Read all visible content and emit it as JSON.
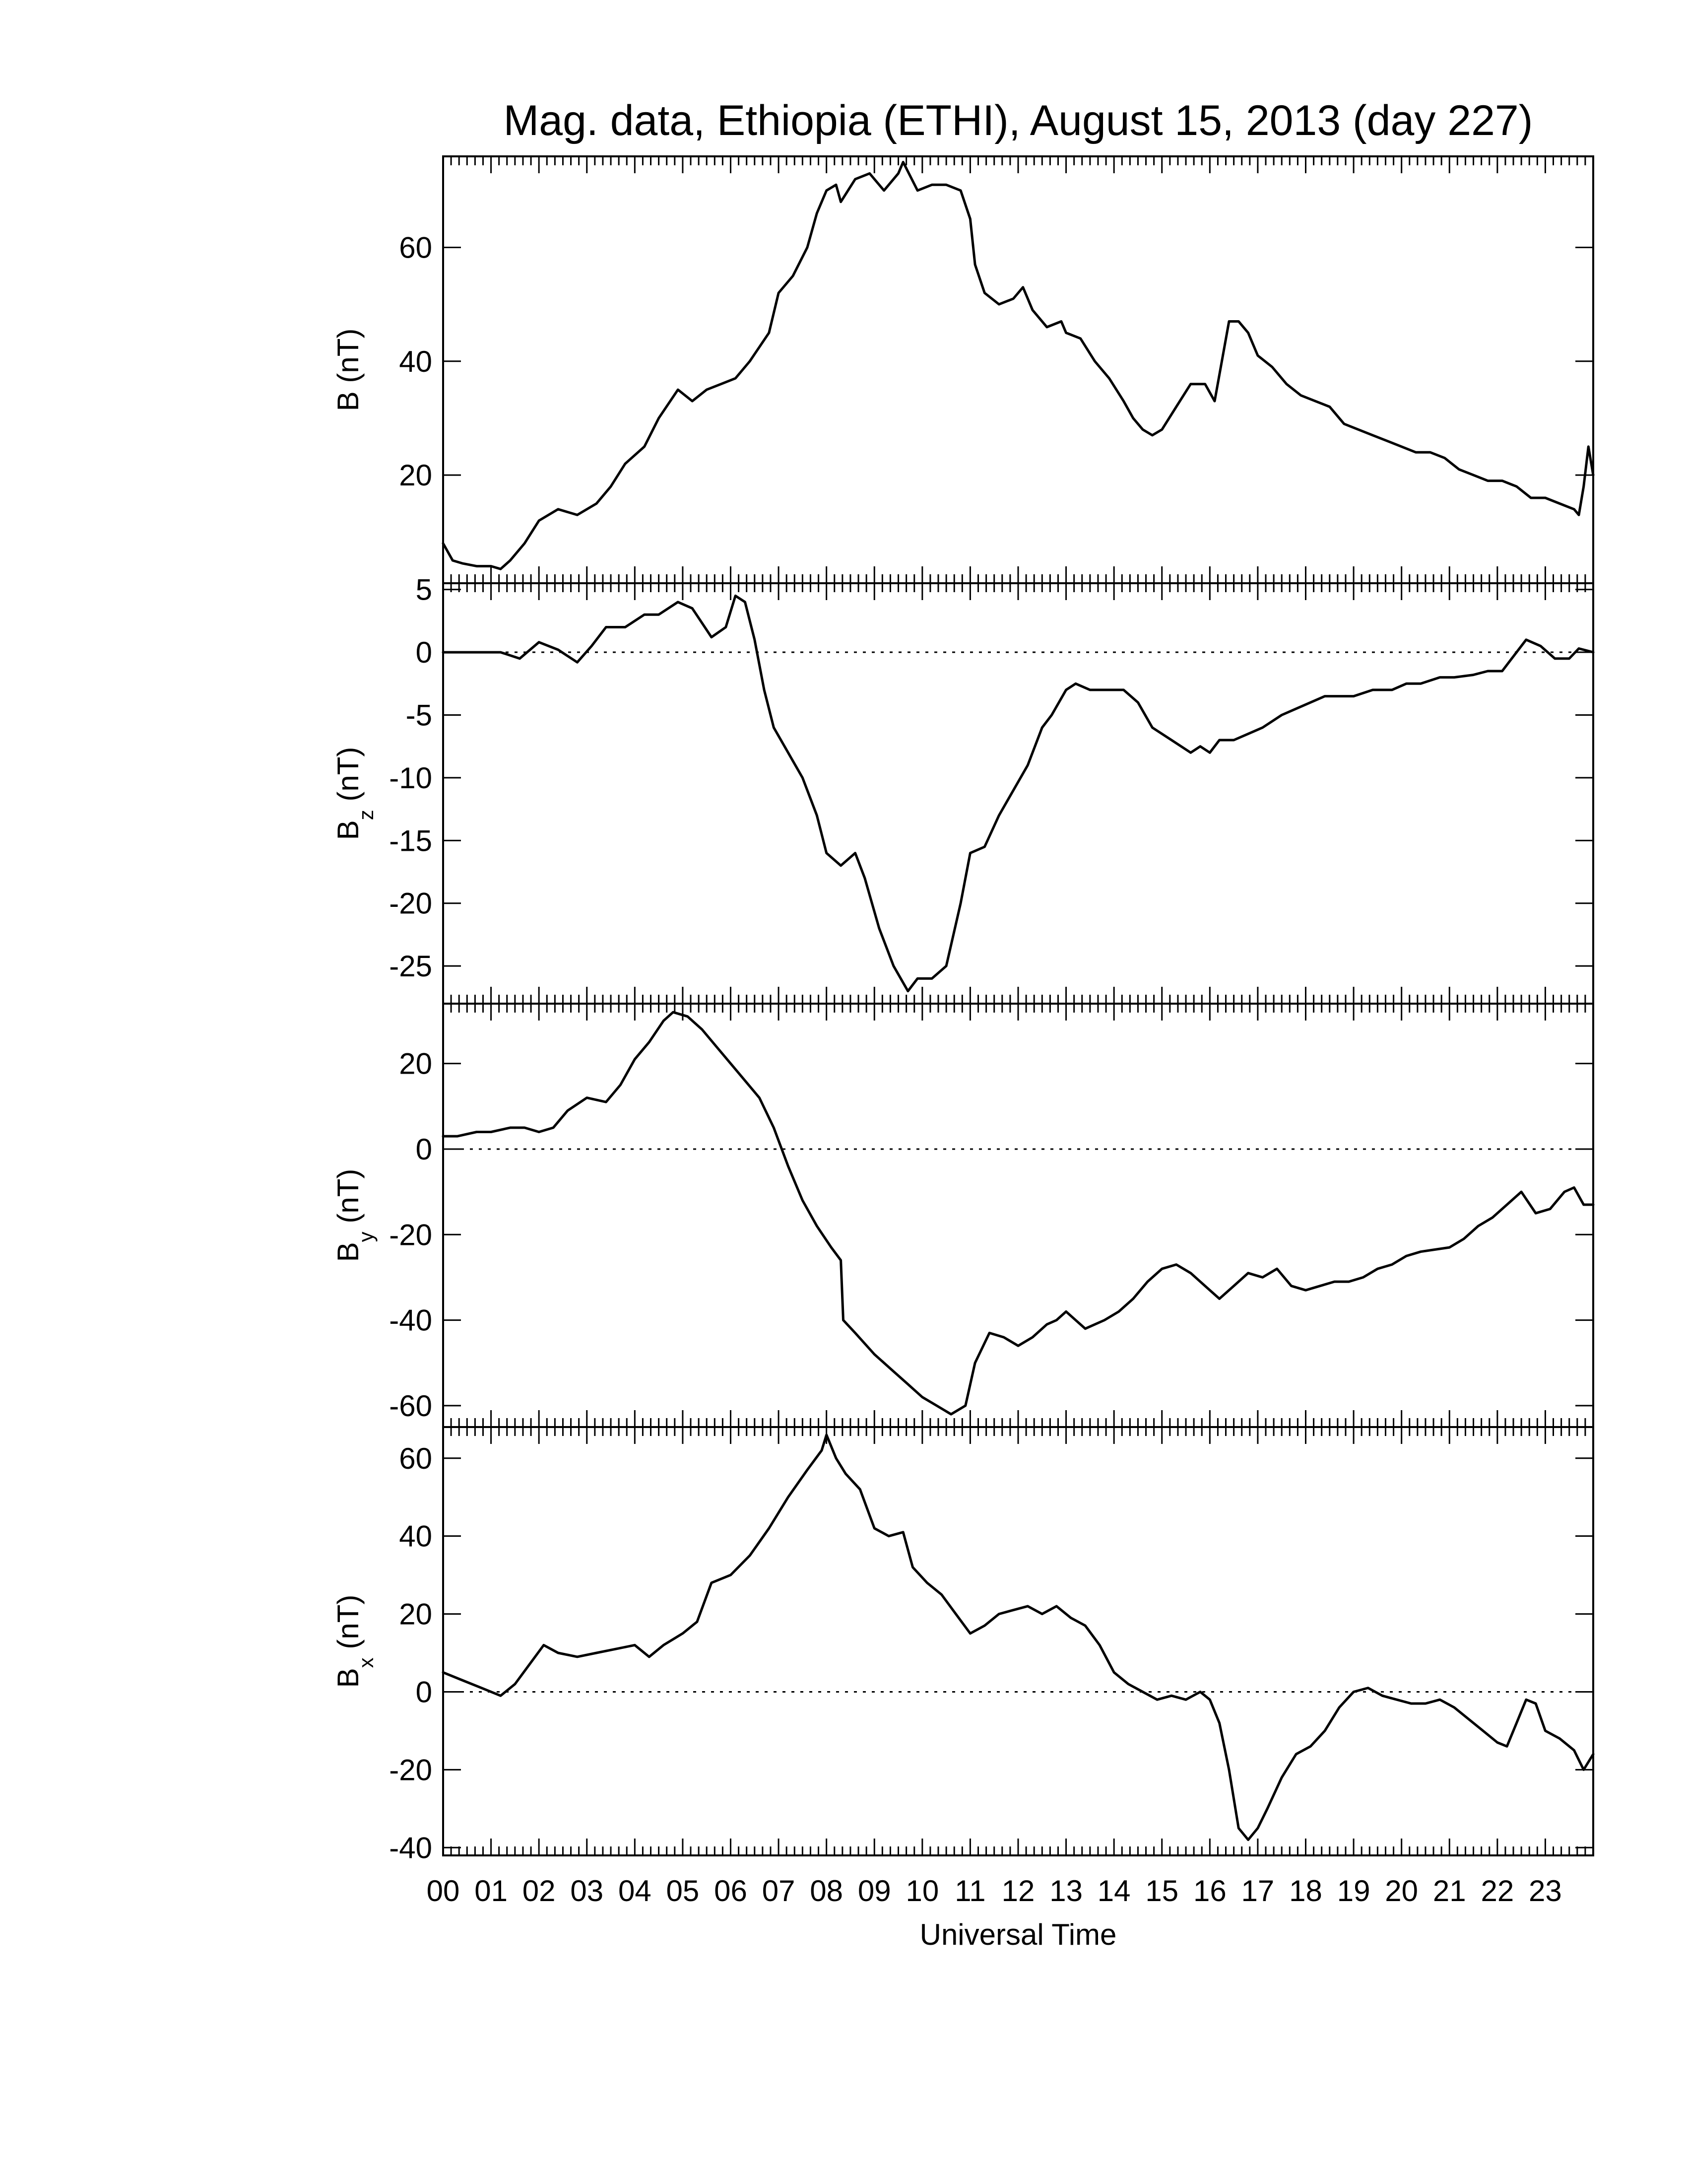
{
  "chart_data": {
    "title": "Mag. data, Ethiopia (ETHI), August 15, 2013 (day 227)",
    "xlabel": "Universal Time",
    "x_tick_labels": [
      "00",
      "01",
      "02",
      "03",
      "04",
      "05",
      "06",
      "07",
      "08",
      "09",
      "10",
      "11",
      "12",
      "13",
      "14",
      "15",
      "16",
      "17",
      "18",
      "19",
      "20",
      "21",
      "22",
      "23"
    ],
    "xlim": [
      0,
      24
    ],
    "panels": [
      {
        "type": "line",
        "ylabel": "B (nT)",
        "ylabel_main": "B",
        "ylabel_sub": "",
        "ylabel_unit": " (nT)",
        "ylim": [
          1,
          76
        ],
        "yticks": [
          20,
          40,
          60
        ],
        "ytick_labels": [
          "20",
          "40",
          "60"
        ],
        "zero_line": false,
        "x": [
          0,
          0.2,
          0.4,
          0.7,
          1.0,
          1.2,
          1.4,
          1.7,
          2.0,
          2.4,
          2.8,
          3.2,
          3.5,
          3.8,
          4.2,
          4.5,
          4.9,
          5.2,
          5.5,
          5.8,
          6.1,
          6.4,
          6.8,
          7.0,
          7.3,
          7.6,
          7.8,
          8.0,
          8.2,
          8.3,
          8.6,
          8.9,
          9.2,
          9.5,
          9.6,
          9.9,
          10.2,
          10.5,
          10.8,
          11.0,
          11.1,
          11.3,
          11.6,
          11.9,
          12.1,
          12.3,
          12.6,
          12.9,
          13.0,
          13.3,
          13.6,
          13.9,
          14.2,
          14.4,
          14.6,
          14.8,
          15.0,
          15.3,
          15.6,
          15.9,
          16.1,
          16.4,
          16.6,
          16.8,
          17.0,
          17.3,
          17.6,
          17.9,
          18.2,
          18.5,
          18.8,
          19.1,
          19.4,
          19.7,
          20.0,
          20.3,
          20.6,
          20.9,
          21.2,
          21.5,
          21.8,
          22.1,
          22.4,
          22.7,
          23.0,
          23.3,
          23.6,
          23.7,
          23.8,
          23.9,
          24.0
        ],
        "y": [
          8,
          5,
          4.5,
          4,
          4,
          3.5,
          5,
          8,
          12,
          14,
          13,
          15,
          18,
          22,
          25,
          30,
          35,
          33,
          35,
          36,
          37,
          40,
          45,
          52,
          55,
          60,
          66,
          70,
          71,
          68,
          72,
          73,
          70,
          73,
          75,
          70,
          71,
          71,
          70,
          65,
          57,
          52,
          50,
          51,
          53,
          49,
          46,
          47,
          45,
          44,
          40,
          37,
          33,
          30,
          28,
          27,
          28,
          32,
          36,
          36,
          33,
          47,
          47,
          45,
          41,
          39,
          36,
          34,
          33,
          32,
          29,
          28,
          27,
          26,
          25,
          24,
          24,
          23,
          21,
          20,
          19,
          19,
          18,
          16,
          16,
          15,
          14,
          13,
          18,
          25,
          20
        ]
      },
      {
        "type": "line",
        "ylabel": "Bz (nT)",
        "ylabel_main": "B",
        "ylabel_sub": "z",
        "ylabel_unit": " (nT)",
        "ylim": [
          -28,
          5.5
        ],
        "yticks": [
          -25,
          -20,
          -15,
          -10,
          -5,
          0,
          5
        ],
        "ytick_labels": [
          "-25",
          "-20",
          "-15",
          "-10",
          "-5",
          "0",
          "5"
        ],
        "zero_line": true,
        "x": [
          0,
          0.4,
          0.8,
          1.2,
          1.6,
          2.0,
          2.4,
          2.8,
          3.1,
          3.4,
          3.8,
          4.2,
          4.5,
          4.9,
          5.2,
          5.6,
          5.9,
          6.1,
          6.3,
          6.5,
          6.7,
          6.9,
          7.2,
          7.5,
          7.8,
          8.0,
          8.3,
          8.6,
          8.8,
          9.1,
          9.4,
          9.7,
          9.9,
          10.2,
          10.5,
          10.8,
          11.0,
          11.3,
          11.6,
          11.9,
          12.2,
          12.5,
          12.7,
          13.0,
          13.2,
          13.5,
          13.9,
          14.2,
          14.5,
          14.8,
          15.2,
          15.6,
          15.8,
          16.0,
          16.2,
          16.5,
          16.8,
          17.1,
          17.5,
          17.8,
          18.1,
          18.4,
          18.7,
          19.0,
          19.4,
          19.8,
          20.1,
          20.4,
          20.8,
          21.1,
          21.5,
          21.8,
          22.1,
          22.3,
          22.6,
          22.9,
          23.2,
          23.5,
          23.7,
          24.0
        ],
        "y": [
          0,
          0,
          0,
          0,
          -0.5,
          0.8,
          0.2,
          -0.8,
          0.5,
          2,
          2,
          3,
          3,
          4,
          3.5,
          1.2,
          2,
          4.5,
          4,
          1,
          -3,
          -6,
          -8,
          -10,
          -13,
          -16,
          -17,
          -16,
          -18,
          -22,
          -25,
          -27,
          -26,
          -26,
          -25,
          -20,
          -16,
          -15.5,
          -13,
          -11,
          -9,
          -6,
          -5,
          -3,
          -2.5,
          -3,
          -3,
          -3,
          -4,
          -6,
          -7,
          -8,
          -7.5,
          -8,
          -7,
          -7,
          -6.5,
          -6,
          -5,
          -4.5,
          -4,
          -3.5,
          -3.5,
          -3.5,
          -3,
          -3,
          -2.5,
          -2.5,
          -2,
          -2,
          -1.8,
          -1.5,
          -1.5,
          -0.5,
          1,
          0.5,
          -0.5,
          -0.5,
          0.3,
          0
        ]
      },
      {
        "type": "line",
        "ylabel": "By (nT)",
        "ylabel_main": "B",
        "ylabel_sub": "y",
        "ylabel_unit": " (nT)",
        "ylim": [
          -65,
          34
        ],
        "yticks": [
          -60,
          -40,
          -20,
          0,
          20
        ],
        "ytick_labels": [
          "-60",
          "-40",
          "-20",
          "0",
          "20"
        ],
        "zero_line": true,
        "x": [
          0,
          0.3,
          0.7,
          1.0,
          1.4,
          1.7,
          2.0,
          2.3,
          2.6,
          3.0,
          3.4,
          3.7,
          4.0,
          4.3,
          4.6,
          4.8,
          5.1,
          5.4,
          5.7,
          6.0,
          6.3,
          6.6,
          6.9,
          7.2,
          7.5,
          7.8,
          8.1,
          8.3,
          8.35,
          8.6,
          9.0,
          9.4,
          9.7,
          10.0,
          10.3,
          10.6,
          10.9,
          11.1,
          11.4,
          11.7,
          12.0,
          12.3,
          12.6,
          12.8,
          13.0,
          13.4,
          13.8,
          14.1,
          14.4,
          14.7,
          15.0,
          15.3,
          15.6,
          15.9,
          16.2,
          16.5,
          16.8,
          17.1,
          17.4,
          17.7,
          18.0,
          18.3,
          18.6,
          18.9,
          19.2,
          19.5,
          19.8,
          20.1,
          20.4,
          20.7,
          21.0,
          21.3,
          21.6,
          21.9,
          22.2,
          22.5,
          22.8,
          23.1,
          23.4,
          23.6,
          23.8,
          24.0
        ],
        "y": [
          3,
          3,
          4,
          4,
          5,
          5,
          4,
          5,
          9,
          12,
          11,
          15,
          21,
          25,
          30,
          32,
          31,
          28,
          24,
          20,
          16,
          12,
          5,
          -4,
          -12,
          -18,
          -23,
          -26,
          -40,
          -43,
          -48,
          -52,
          -55,
          -58,
          -60,
          -62,
          -60,
          -50,
          -43,
          -44,
          -46,
          -44,
          -41,
          -40,
          -38,
          -42,
          -40,
          -38,
          -35,
          -31,
          -28,
          -27,
          -29,
          -32,
          -35,
          -32,
          -29,
          -30,
          -28,
          -32,
          -33,
          -32,
          -31,
          -31,
          -30,
          -28,
          -27,
          -25,
          -24,
          -23.5,
          -23,
          -21,
          -18,
          -16,
          -13,
          -10,
          -15,
          -14,
          -10,
          -9,
          -13,
          -13
        ]
      },
      {
        "type": "line",
        "ylabel": "Bx (nT)",
        "ylabel_main": "B",
        "ylabel_sub": "x",
        "ylabel_unit": " (nT)",
        "ylim": [
          -42,
          68
        ],
        "yticks": [
          -40,
          -20,
          0,
          20,
          40,
          60
        ],
        "ytick_labels": [
          "-40",
          "-20",
          "0",
          "20",
          "40",
          "60"
        ],
        "zero_line": true,
        "x": [
          0,
          0.4,
          0.8,
          1.2,
          1.5,
          1.8,
          2.1,
          2.4,
          2.8,
          3.2,
          3.6,
          4.0,
          4.3,
          4.6,
          5.0,
          5.3,
          5.6,
          6.0,
          6.4,
          6.8,
          7.2,
          7.6,
          7.9,
          8.0,
          8.2,
          8.4,
          8.7,
          9.0,
          9.3,
          9.6,
          9.8,
          10.1,
          10.4,
          10.7,
          11.0,
          11.3,
          11.6,
          11.9,
          12.2,
          12.5,
          12.8,
          13.1,
          13.4,
          13.7,
          14.0,
          14.3,
          14.6,
          14.9,
          15.2,
          15.5,
          15.8,
          16.0,
          16.2,
          16.4,
          16.6,
          16.8,
          17.0,
          17.2,
          17.5,
          17.8,
          18.1,
          18.4,
          18.7,
          19.0,
          19.3,
          19.6,
          19.9,
          20.2,
          20.5,
          20.8,
          21.1,
          21.4,
          21.7,
          22.0,
          22.2,
          22.4,
          22.6,
          22.8,
          23.0,
          23.3,
          23.6,
          23.8,
          24.0
        ],
        "y": [
          5,
          3,
          1,
          -1,
          2,
          7,
          12,
          10,
          9,
          10,
          11,
          12,
          9,
          12,
          15,
          18,
          28,
          30,
          35,
          42,
          50,
          57,
          62,
          66,
          60,
          56,
          52,
          42,
          40,
          41,
          32,
          28,
          25,
          20,
          15,
          17,
          20,
          21,
          22,
          20,
          22,
          19,
          17,
          12,
          5,
          2,
          0,
          -2,
          -1,
          -2,
          0,
          -2,
          -8,
          -20,
          -35,
          -38,
          -35,
          -30,
          -22,
          -16,
          -14,
          -10,
          -4,
          0,
          1,
          -1,
          -2,
          -3,
          -3,
          -2,
          -4,
          -7,
          -10,
          -13,
          -14,
          -8,
          -2,
          -3,
          -10,
          -12,
          -15,
          -20,
          -16
        ]
      }
    ]
  }
}
